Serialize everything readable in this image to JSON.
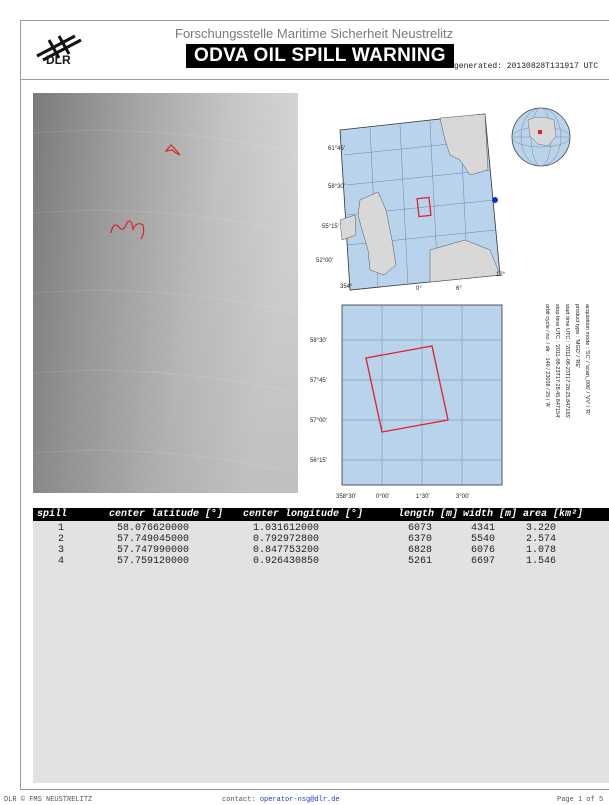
{
  "header": {
    "logo_text": "DLR",
    "organization": "Forschungsstelle Maritime Sicherheit Neustrelitz",
    "title": "ODVA OIL SPILL WARNING",
    "generated": "generated: 20130828T131917 UTC"
  },
  "overview_map": {
    "lat_labels": [
      "61°45'",
      "58°30'",
      "55°15'",
      "52°00'"
    ],
    "lon_labels": [
      "354°",
      "0°",
      "6°",
      "12°"
    ]
  },
  "detail_map": {
    "lat_labels": [
      "58°30'",
      "57°45'",
      "57°00'",
      "56°15'"
    ],
    "lon_labels": [
      "358°30'",
      "0°00'",
      "1°30'",
      "3°00'"
    ]
  },
  "metadata_lines": [
    "acquisition mode : 'SC' / 'scan_006' / 'VV' / 'R'",
    "product type    : 'MGD' / 'RE'",
    "start time UTC   : '2011-08-23T17:28:25.847165'",
    "stop time UTC    : '2011-08-23T17:28:45.847154'",
    "orbit cycle / no. / dir. : 146 / 23038 / 25 / 'A'"
  ],
  "table": {
    "headers": [
      "spill",
      "center latitude [°]",
      "center longitude [°]",
      "length [m]",
      "width [m]",
      "area [km²]"
    ],
    "rows": [
      [
        "1",
        "58.076620000",
        "1.031612000",
        "6073",
        "4341",
        "3.220"
      ],
      [
        "2",
        "57.749045000",
        "0.792972800",
        "6370",
        "5540",
        "2.574"
      ],
      [
        "3",
        "57.747990000",
        "0.847753200",
        "6828",
        "6076",
        "1.078"
      ],
      [
        "4",
        "57.759120000",
        "0.926430850",
        "5261",
        "6697",
        "1.546"
      ]
    ]
  },
  "footer": {
    "left": "DLR © FMS NEUSTRELITZ",
    "contact_label": "contact:",
    "contact_email": "operator-nsg@dlr.de",
    "page": "Page 1 of 5"
  },
  "colors": {
    "outline_red": "#e0202a",
    "map_water": "#b9d3ec",
    "land": "#d8d8d8"
  }
}
